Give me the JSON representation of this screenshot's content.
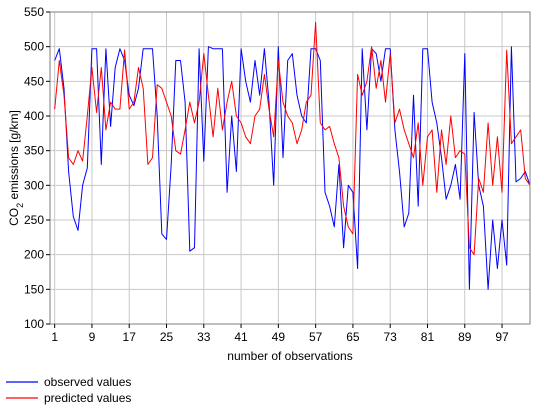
{
  "chart_data": {
    "type": "line",
    "xlabel": "number of observations",
    "ylabel": "CO2 emissions [g/km]",
    "ylabel_parts": {
      "before": "CO",
      "subscript": "2",
      "after": " emissions [g/km]"
    },
    "xlim": [
      0,
      103
    ],
    "ylim": [
      100,
      550
    ],
    "x_ticks": [
      1,
      9,
      17,
      25,
      33,
      41,
      49,
      57,
      65,
      73,
      81,
      89,
      97
    ],
    "y_ticks": [
      100,
      150,
      200,
      250,
      300,
      350,
      400,
      450,
      500,
      550
    ],
    "grid": true,
    "legend_position": "bottom-left",
    "series": [
      {
        "name": "observed values",
        "color": "#0000ff",
        "values": [
          480,
          497,
          440,
          320,
          255,
          235,
          300,
          325,
          497,
          497,
          330,
          497,
          385,
          470,
          497,
          480,
          430,
          415,
          440,
          497,
          497,
          497,
          400,
          230,
          222,
          330,
          480,
          480,
          420,
          205,
          210,
          497,
          335,
          500,
          497,
          497,
          497,
          290,
          400,
          320,
          497,
          450,
          420,
          480,
          430,
          497,
          420,
          300,
          500,
          340,
          480,
          490,
          430,
          400,
          390,
          497,
          497,
          480,
          290,
          270,
          240,
          330,
          210,
          300,
          290,
          180,
          497,
          380,
          497,
          490,
          450,
          497,
          497,
          380,
          320,
          240,
          260,
          430,
          270,
          497,
          497,
          420,
          390,
          340,
          280,
          300,
          330,
          280,
          490,
          150,
          405,
          300,
          270,
          150,
          250,
          180,
          250,
          185,
          500,
          305,
          310,
          320,
          300
        ],
        "points_x_start": 1
      },
      {
        "name": "predicted values",
        "color": "#ff0000",
        "values": [
          410,
          480,
          430,
          340,
          330,
          350,
          335,
          400,
          470,
          405,
          470,
          380,
          420,
          410,
          410,
          495,
          410,
          420,
          470,
          440,
          330,
          340,
          445,
          440,
          420,
          400,
          350,
          345,
          380,
          420,
          390,
          420,
          490,
          430,
          370,
          440,
          380,
          420,
          450,
          400,
          390,
          370,
          360,
          400,
          410,
          460,
          410,
          370,
          480,
          420,
          400,
          390,
          360,
          380,
          420,
          430,
          535,
          390,
          380,
          385,
          360,
          340,
          270,
          240,
          230,
          460,
          430,
          450,
          500,
          440,
          480,
          420,
          490,
          390,
          410,
          380,
          360,
          340,
          390,
          300,
          370,
          380,
          290,
          380,
          330,
          400,
          340,
          350,
          345,
          210,
          200,
          310,
          290,
          390,
          300,
          370,
          290,
          495,
          360,
          370,
          380,
          310,
          300
        ],
        "points_x_start": 1
      }
    ]
  }
}
